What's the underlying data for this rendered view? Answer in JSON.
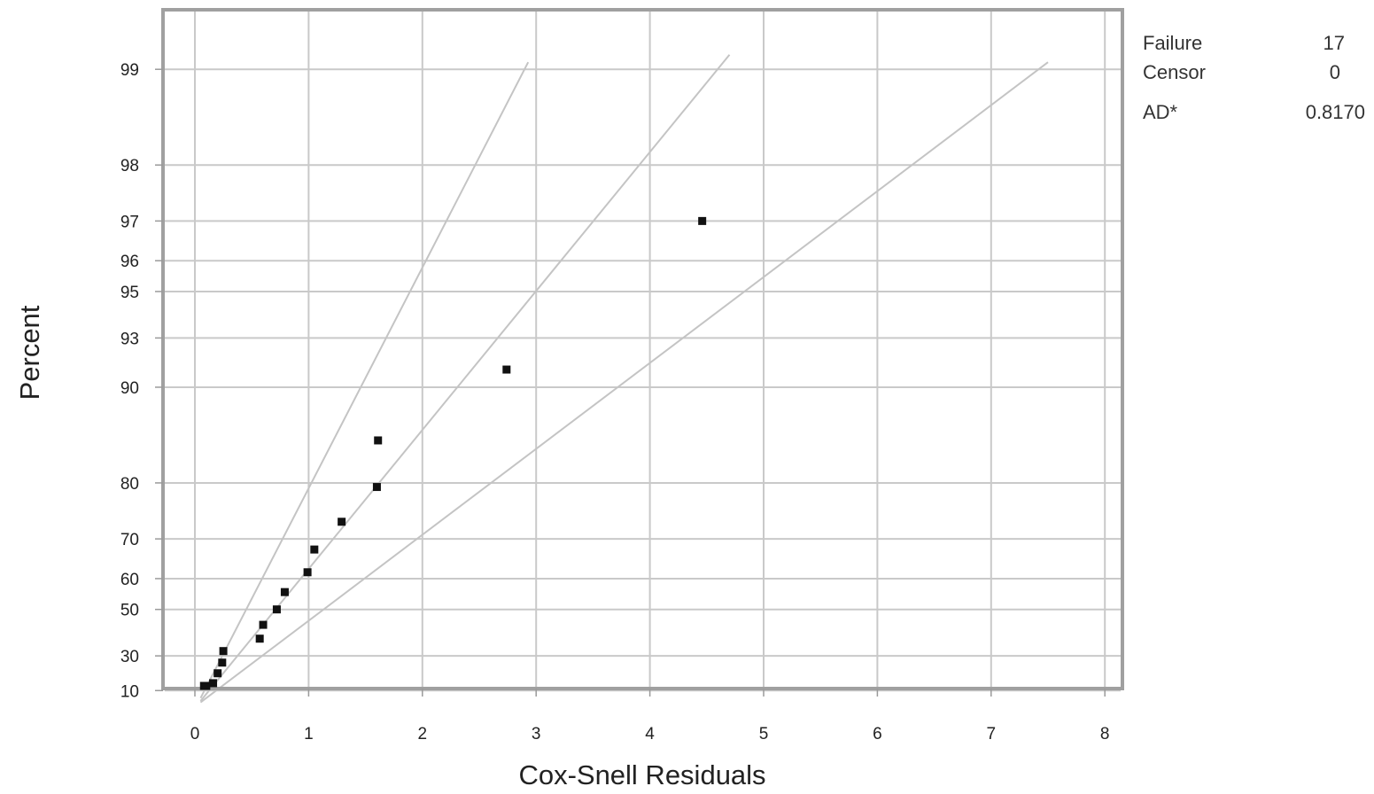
{
  "chart_data": {
    "type": "scatter",
    "title": "",
    "xlabel": "Cox-Snell Residuals",
    "ylabel": "Percent",
    "xlim": [
      0,
      8
    ],
    "x_ticks": [
      "0",
      "1",
      "2",
      "3",
      "4",
      "5",
      "6",
      "7",
      "8"
    ],
    "y_scale": "exponential-probability",
    "y_ticks": [
      "10",
      "30",
      "50",
      "60",
      "70",
      "80",
      "90",
      "93",
      "95",
      "96",
      "97",
      "98",
      "99"
    ],
    "grid": true,
    "points": [
      {
        "x": 0.08,
        "y": 3
      },
      {
        "x": 0.1,
        "y": 8.8
      },
      {
        "x": 0.16,
        "y": 14.7
      },
      {
        "x": 0.2,
        "y": 20.6
      },
      {
        "x": 0.24,
        "y": 26.5
      },
      {
        "x": 0.25,
        "y": 32.4
      },
      {
        "x": 0.57,
        "y": 38.2
      },
      {
        "x": 0.6,
        "y": 44.1
      },
      {
        "x": 0.72,
        "y": 50
      },
      {
        "x": 0.79,
        "y": 55.9
      },
      {
        "x": 0.99,
        "y": 61.8
      },
      {
        "x": 1.05,
        "y": 67.6
      },
      {
        "x": 1.29,
        "y": 73.5
      },
      {
        "x": 1.6,
        "y": 79.4
      },
      {
        "x": 1.61,
        "y": 85.3
      },
      {
        "x": 2.74,
        "y": 91.2
      },
      {
        "x": 4.46,
        "y": 97
      }
    ],
    "reference_lines": [
      {
        "name": "upper",
        "points": [
          [
            0.05,
            5
          ],
          [
            2.93,
            99.05
          ]
        ]
      },
      {
        "name": "fit",
        "points": [
          [
            0.05,
            3
          ],
          [
            4.7,
            99.1
          ]
        ]
      },
      {
        "name": "lower",
        "points": [
          [
            0.05,
            2
          ],
          [
            7.5,
            99.05
          ]
        ]
      }
    ],
    "stats": [
      {
        "label": "Failure",
        "value": "17"
      },
      {
        "label": "Censor",
        "value": "0"
      },
      {
        "label": "AD*",
        "value": "0.8170"
      }
    ],
    "colors": {
      "grid": "#c9c9c9",
      "frame": "#999999",
      "point": "#111111",
      "line": "#c4c4c4"
    }
  }
}
